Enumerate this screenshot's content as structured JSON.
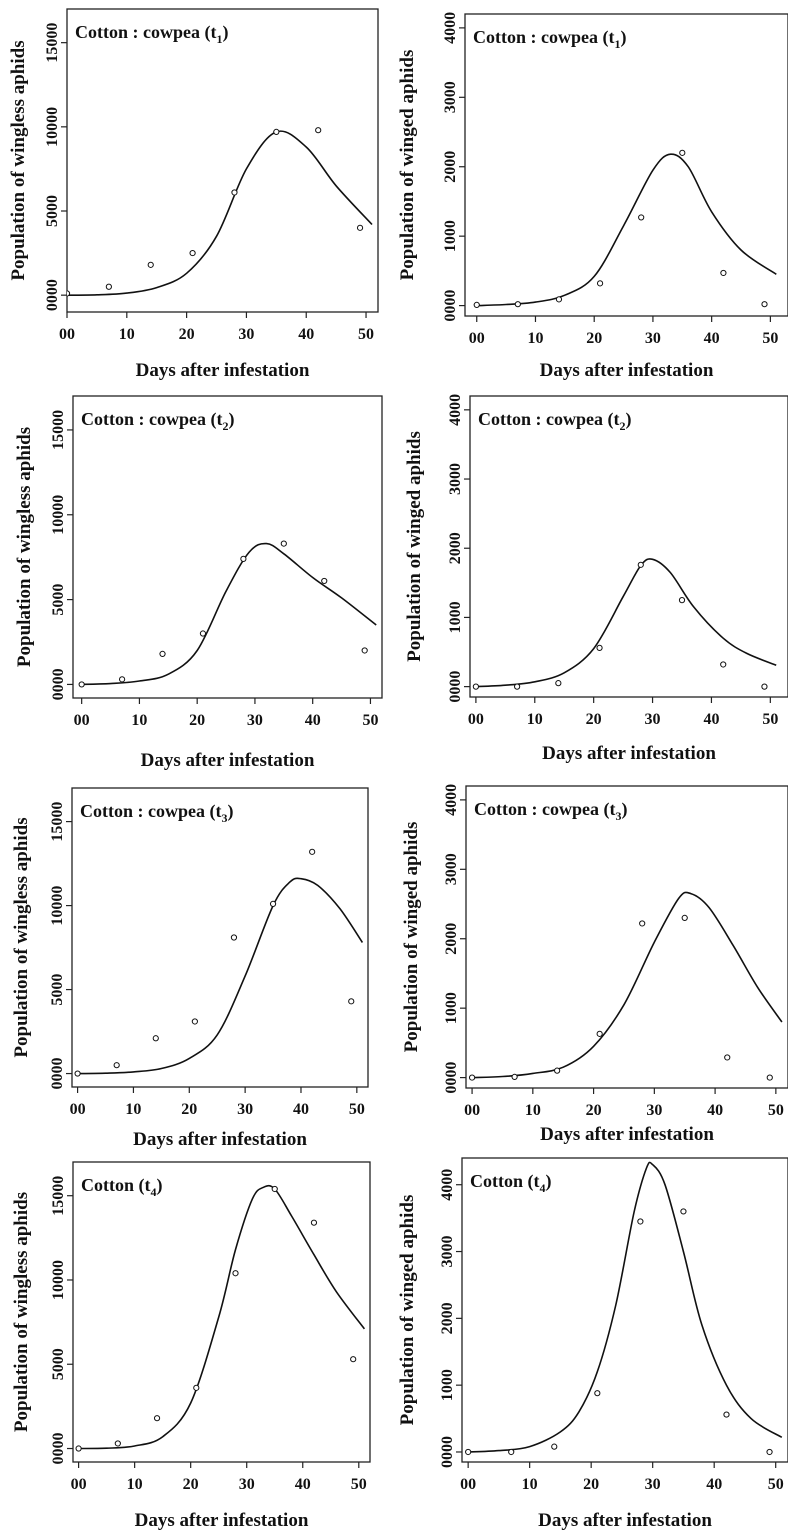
{
  "chart_data": [
    {
      "type": "scatter",
      "title_main": "Cotton : cowpea (t",
      "title_sub": "1",
      "title_end": ")",
      "xlabel": "Days after infestation",
      "ylabel": "Population of wingless aphids",
      "xlim": [
        0,
        52
      ],
      "ylim": [
        -1000,
        17000
      ],
      "xticks": [
        0,
        10,
        20,
        30,
        40,
        50
      ],
      "xtick_labels": [
        "00",
        "10",
        "20",
        "30",
        "40",
        "50"
      ],
      "yticks": [
        0,
        5000,
        10000,
        15000
      ],
      "ytick_labels": [
        "0000",
        "5000",
        "10000",
        "15000"
      ],
      "series": [
        {
          "kind": "points",
          "x": [
            0,
            7,
            14,
            21,
            28,
            35,
            42,
            49
          ],
          "y": [
            100,
            500,
            1800,
            2500,
            6100,
            9700,
            9800,
            4000
          ]
        },
        {
          "kind": "fitted-curve",
          "x": [
            0,
            5,
            10,
            15,
            20,
            25,
            30,
            35,
            40,
            45,
            51
          ],
          "y": [
            0,
            20,
            120,
            450,
            1300,
            3500,
            7500,
            9700,
            8800,
            6500,
            4200
          ]
        }
      ]
    },
    {
      "type": "scatter",
      "title_main": "Cotton : cowpea (t",
      "title_sub": "1",
      "title_end": ")",
      "xlabel": "Days after infestation",
      "ylabel": "Population of winged aphids",
      "xlim": [
        -2,
        53
      ],
      "ylim": [
        -150,
        4200
      ],
      "xticks": [
        0,
        10,
        20,
        30,
        40,
        50
      ],
      "xtick_labels": [
        "00",
        "10",
        "20",
        "30",
        "40",
        "50"
      ],
      "yticks": [
        0,
        1000,
        2000,
        3000,
        4000
      ],
      "ytick_labels": [
        "0000",
        "1000",
        "2000",
        "3000",
        "4000"
      ],
      "series": [
        {
          "kind": "points",
          "x": [
            0,
            7,
            14,
            21,
            28,
            35,
            42,
            49
          ],
          "y": [
            10,
            20,
            90,
            320,
            1270,
            2200,
            470,
            20
          ]
        },
        {
          "kind": "fitted-curve",
          "x": [
            0,
            5,
            10,
            15,
            20,
            25,
            30,
            33,
            36,
            40,
            45,
            51
          ],
          "y": [
            0,
            15,
            50,
            150,
            420,
            1150,
            1950,
            2180,
            2000,
            1350,
            800,
            450
          ]
        }
      ]
    },
    {
      "type": "scatter",
      "title_main": "Cotton : cowpea (t",
      "title_sub": "2",
      "title_end": ")",
      "xlabel": "Days after infestation",
      "ylabel": "Population of wingless aphids",
      "xlim": [
        -1.5,
        52
      ],
      "ylim": [
        -800,
        17000
      ],
      "xticks": [
        0,
        10,
        20,
        30,
        40,
        50
      ],
      "xtick_labels": [
        "00",
        "10",
        "20",
        "30",
        "40",
        "50"
      ],
      "yticks": [
        0,
        5000,
        10000,
        15000
      ],
      "ytick_labels": [
        "0000",
        "5000",
        "10000",
        "15000"
      ],
      "series": [
        {
          "kind": "points",
          "x": [
            0,
            7,
            14,
            21,
            28,
            35,
            42,
            49
          ],
          "y": [
            0,
            300,
            1800,
            3000,
            7400,
            8300,
            6100,
            2000
          ]
        },
        {
          "kind": "fitted-curve",
          "x": [
            0,
            5,
            10,
            15,
            20,
            25,
            29,
            32,
            35,
            40,
            45,
            51
          ],
          "y": [
            0,
            50,
            200,
            600,
            2000,
            5500,
            7800,
            8300,
            7700,
            6300,
            5100,
            3500
          ]
        }
      ]
    },
    {
      "type": "scatter",
      "title_main": "Cotton : cowpea (t",
      "title_sub": "2",
      "title_end": ")",
      "xlabel": "Days after infestation",
      "ylabel": "Population of winged aphids",
      "xlim": [
        -1,
        53
      ],
      "ylim": [
        -150,
        4200
      ],
      "xticks": [
        0,
        10,
        20,
        30,
        40,
        50
      ],
      "xtick_labels": [
        "00",
        "10",
        "20",
        "30",
        "40",
        "50"
      ],
      "yticks": [
        0,
        1000,
        2000,
        3000,
        4000
      ],
      "ytick_labels": [
        "0000",
        "1000",
        "2000",
        "3000",
        "4000"
      ],
      "series": [
        {
          "kind": "points",
          "x": [
            0,
            7,
            14,
            21,
            28,
            35,
            42,
            49
          ],
          "y": [
            0,
            0,
            50,
            560,
            1760,
            1250,
            320,
            0
          ]
        },
        {
          "kind": "fitted-curve",
          "x": [
            0,
            5,
            10,
            15,
            20,
            25,
            28,
            30,
            33,
            37,
            42,
            46,
            51
          ],
          "y": [
            0,
            20,
            70,
            200,
            550,
            1300,
            1750,
            1840,
            1650,
            1150,
            700,
            480,
            310
          ]
        }
      ]
    },
    {
      "type": "scatter",
      "title_main": "Cotton : cowpea (t",
      "title_sub": "3",
      "title_end": ")",
      "xlabel": "Days after infestation",
      "ylabel": "Population of wingless aphids",
      "xlim": [
        -1,
        52
      ],
      "ylim": [
        -800,
        17000
      ],
      "xticks": [
        0,
        10,
        20,
        30,
        40,
        50
      ],
      "xtick_labels": [
        "00",
        "10",
        "20",
        "30",
        "40",
        "50"
      ],
      "yticks": [
        0,
        5000,
        10000,
        15000
      ],
      "ytick_labels": [
        "0000",
        "5000",
        "10000",
        "15000"
      ],
      "series": [
        {
          "kind": "points",
          "x": [
            0,
            7,
            14,
            21,
            28,
            35,
            42,
            49
          ],
          "y": [
            0,
            500,
            2100,
            3100,
            8100,
            10100,
            13200,
            4300
          ]
        },
        {
          "kind": "fitted-curve",
          "x": [
            0,
            5,
            10,
            15,
            20,
            25,
            30,
            35,
            38,
            40,
            43,
            47,
            51
          ],
          "y": [
            0,
            20,
            100,
            300,
            900,
            2300,
            5800,
            10000,
            11400,
            11600,
            11200,
            9800,
            7800
          ]
        }
      ]
    },
    {
      "type": "scatter",
      "title_main": "Cotton : cowpea (t",
      "title_sub": "3",
      "title_end": ")",
      "xlabel": "Days after infestation",
      "ylabel": "Population of winged aphids",
      "xlim": [
        -1,
        52
      ],
      "ylim": [
        -150,
        4200
      ],
      "xticks": [
        0,
        10,
        20,
        30,
        40,
        50
      ],
      "xtick_labels": [
        "00",
        "10",
        "20",
        "30",
        "40",
        "50"
      ],
      "yticks": [
        0,
        1000,
        2000,
        3000,
        4000
      ],
      "ytick_labels": [
        "0000",
        "1000",
        "2000",
        "3000",
        "4000"
      ],
      "series": [
        {
          "kind": "points",
          "x": [
            0,
            7,
            14,
            21,
            28,
            35,
            42,
            49
          ],
          "y": [
            0,
            10,
            100,
            630,
            2220,
            2300,
            290,
            0
          ]
        },
        {
          "kind": "fitted-curve",
          "x": [
            0,
            5,
            10,
            15,
            20,
            25,
            30,
            34,
            36,
            39,
            43,
            47,
            51
          ],
          "y": [
            0,
            15,
            60,
            150,
            450,
            1050,
            1950,
            2580,
            2650,
            2450,
            1900,
            1300,
            800
          ]
        }
      ]
    },
    {
      "type": "scatter",
      "title_main": "Cotton (t",
      "title_sub": "4",
      "title_end": ")",
      "xlabel": "Days after infestation",
      "ylabel": "Population of wingless aphids",
      "xlim": [
        -1,
        52
      ],
      "ylim": [
        -800,
        17000
      ],
      "xticks": [
        0,
        10,
        20,
        30,
        40,
        50
      ],
      "xtick_labels": [
        "00",
        "10",
        "20",
        "30",
        "40",
        "50"
      ],
      "yticks": [
        0,
        5000,
        10000,
        15000
      ],
      "ytick_labels": [
        "0000",
        "5000",
        "10000",
        "15000"
      ],
      "series": [
        {
          "kind": "points",
          "x": [
            0,
            7,
            14,
            21,
            28,
            35,
            42,
            49
          ],
          "y": [
            0,
            300,
            1800,
            3600,
            10400,
            15400,
            13400,
            5300
          ]
        },
        {
          "kind": "fitted-curve",
          "x": [
            0,
            5,
            10,
            15,
            20,
            25,
            28,
            31,
            33,
            35,
            38,
            42,
            46,
            51
          ],
          "y": [
            0,
            20,
            150,
            700,
            2700,
            7800,
            11800,
            14800,
            15500,
            15400,
            13800,
            11500,
            9300,
            7100
          ]
        }
      ]
    },
    {
      "type": "scatter",
      "title_main": "Cotton (t",
      "title_sub": "4",
      "title_end": ")",
      "xlabel": "Days after infestation",
      "ylabel": "Population of winged aphids",
      "xlim": [
        -1,
        52
      ],
      "ylim": [
        -150,
        4400
      ],
      "xticks": [
        0,
        10,
        20,
        30,
        40,
        50
      ],
      "xtick_labels": [
        "00",
        "10",
        "20",
        "30",
        "40",
        "50"
      ],
      "yticks": [
        0,
        1000,
        2000,
        3000,
        4000
      ],
      "ytick_labels": [
        "0000",
        "1000",
        "2000",
        "3000",
        "4000"
      ],
      "series": [
        {
          "kind": "points",
          "x": [
            0,
            7,
            14,
            21,
            28,
            35,
            42,
            49
          ],
          "y": [
            0,
            0,
            80,
            880,
            3450,
            3600,
            560,
            0
          ]
        },
        {
          "kind": "fitted-curve",
          "x": [
            0,
            5,
            10,
            15,
            18,
            21,
            24,
            27,
            29,
            30,
            32,
            35,
            38,
            42,
            46,
            51
          ],
          "y": [
            0,
            20,
            80,
            300,
            600,
            1200,
            2200,
            3600,
            4250,
            4300,
            4000,
            3000,
            1900,
            1000,
            500,
            220
          ]
        }
      ]
    }
  ]
}
